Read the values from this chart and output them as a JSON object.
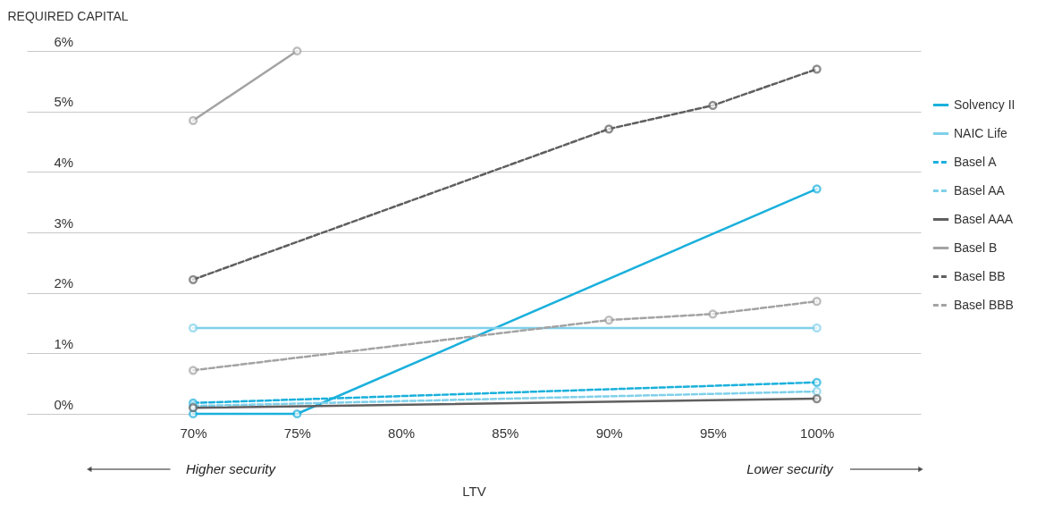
{
  "chart_data": {
    "type": "line",
    "ylabel": "REQUIRED CAPITAL",
    "xlabel": "LTV",
    "xlim": [
      62,
      105
    ],
    "ylim": [
      0,
      6
    ],
    "xticks": [
      {
        "value": 70,
        "label": "70%"
      },
      {
        "value": 75,
        "label": "75%"
      },
      {
        "value": 80,
        "label": "80%"
      },
      {
        "value": 85,
        "label": "85%"
      },
      {
        "value": 90,
        "label": "90%"
      },
      {
        "value": 95,
        "label": "95%"
      },
      {
        "value": 100,
        "label": "100%"
      }
    ],
    "yticks": [
      {
        "value": 0,
        "label": "0%"
      },
      {
        "value": 1,
        "label": "1%"
      },
      {
        "value": 2,
        "label": "2%"
      },
      {
        "value": 3,
        "label": "3%"
      },
      {
        "value": 4,
        "label": "4%"
      },
      {
        "value": 5,
        "label": "5%"
      },
      {
        "value": 6,
        "label": "6%"
      }
    ],
    "grid": "y",
    "legend": "right",
    "marker": "circle",
    "annotations": [
      "Higher security",
      "Lower security"
    ],
    "series": [
      {
        "name": "Solvency II",
        "color": "#1ab0dc",
        "line_style": "solid",
        "x": [
          70,
          75,
          100
        ],
        "values": [
          0,
          0,
          3.72
        ]
      },
      {
        "name": "NAIC Life",
        "color": "#7fd0ea",
        "line_style": "solid",
        "x": [
          70,
          100
        ],
        "values": [
          1.42,
          1.42
        ]
      },
      {
        "name": "Basel A",
        "color": "#1ab0dc",
        "line_style": "dashed",
        "x": [
          70,
          100
        ],
        "values": [
          0.18,
          0.52
        ]
      },
      {
        "name": "Basel AA",
        "color": "#7fd0ea",
        "line_style": "dashed",
        "x": [
          70,
          100
        ],
        "values": [
          0.13,
          0.37
        ]
      },
      {
        "name": "Basel AAA",
        "color": "#5f5f5f",
        "line_style": "solid",
        "x": [
          70,
          100
        ],
        "values": [
          0.1,
          0.25
        ]
      },
      {
        "name": "Basel B",
        "color": "#a3a3a3",
        "line_style": "solid",
        "x": [
          70,
          75
        ],
        "values": [
          4.85,
          6.0
        ]
      },
      {
        "name": "Basel BB",
        "color": "#5f5f5f",
        "line_style": "dashed",
        "x": [
          70,
          90,
          95,
          100
        ],
        "values": [
          2.22,
          4.71,
          5.1,
          5.7
        ]
      },
      {
        "name": "Basel BBB",
        "color": "#a3a3a3",
        "line_style": "dashed",
        "x": [
          70,
          90,
          95,
          100
        ],
        "values": [
          0.72,
          1.55,
          1.65,
          1.86
        ]
      }
    ]
  }
}
